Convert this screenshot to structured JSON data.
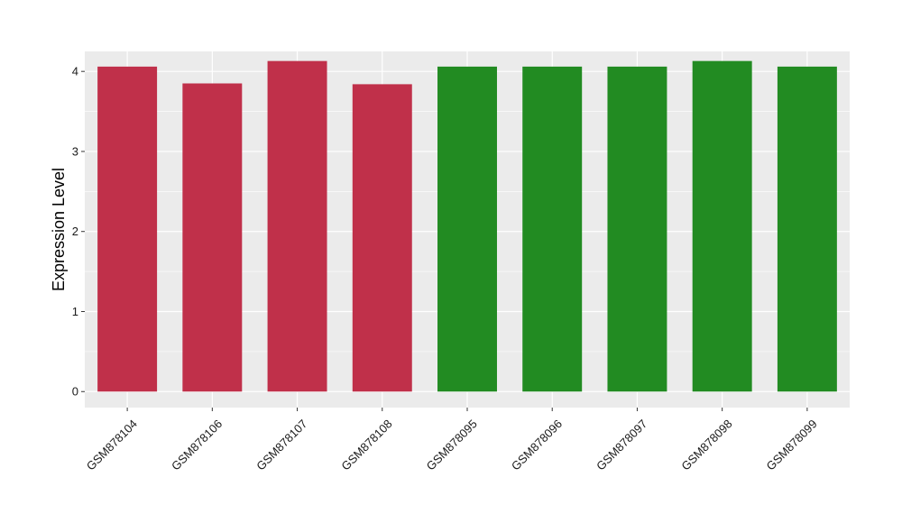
{
  "chart_data": {
    "type": "bar",
    "xlabel": "",
    "ylabel": "Expression Level",
    "ylim": [
      -0.2,
      4.25
    ],
    "yticks": [
      0,
      1,
      2,
      3,
      4
    ],
    "grid": true,
    "categories": [
      "GSM878104",
      "GSM878106",
      "GSM878107",
      "GSM878108",
      "GSM878095",
      "GSM878096",
      "GSM878097",
      "GSM878098",
      "GSM878099"
    ],
    "values": [
      4.06,
      3.85,
      4.13,
      3.84,
      4.06,
      4.06,
      4.06,
      4.13,
      4.06
    ],
    "bar_colors": [
      "#c0304a",
      "#c0304a",
      "#c0304a",
      "#c0304a",
      "#228b22",
      "#228b22",
      "#228b22",
      "#228b22",
      "#228b22"
    ],
    "panel_background": "#ebebeb",
    "grid_color": "#ffffff"
  }
}
